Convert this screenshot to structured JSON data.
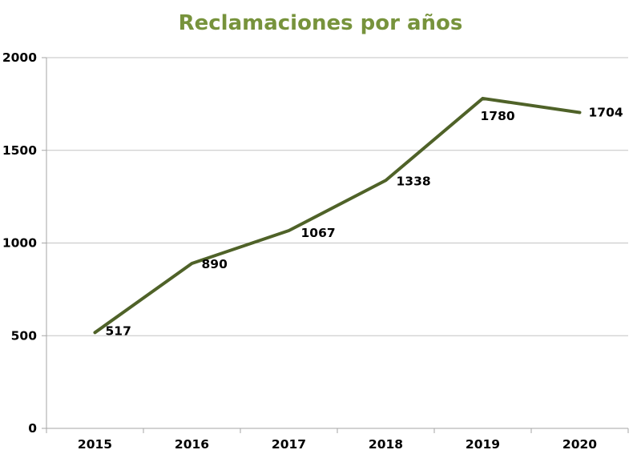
{
  "chart_data": {
    "type": "line",
    "title": "Reclamaciones por años",
    "categories": [
      "2015",
      "2016",
      "2017",
      "2018",
      "2019",
      "2020"
    ],
    "series": [
      {
        "name": "Reclamaciones",
        "values": [
          517,
          890,
          1067,
          1338,
          1780,
          1704
        ]
      }
    ],
    "data_labels": [
      "517",
      "890",
      "1067",
      "1338",
      "1780",
      "1704"
    ],
    "xlabel": "",
    "ylabel": "",
    "ylim": [
      0,
      2000
    ],
    "yticks": [
      0,
      500,
      1000,
      1500,
      2000
    ],
    "grid": "horizontal",
    "legend": "none",
    "colors": {
      "title": "#77933C",
      "line": "#4F6228",
      "gridline": "#C3C3C3",
      "axis": "#A6A6A6",
      "label": "#000000",
      "background": "#FFFFFF"
    }
  }
}
